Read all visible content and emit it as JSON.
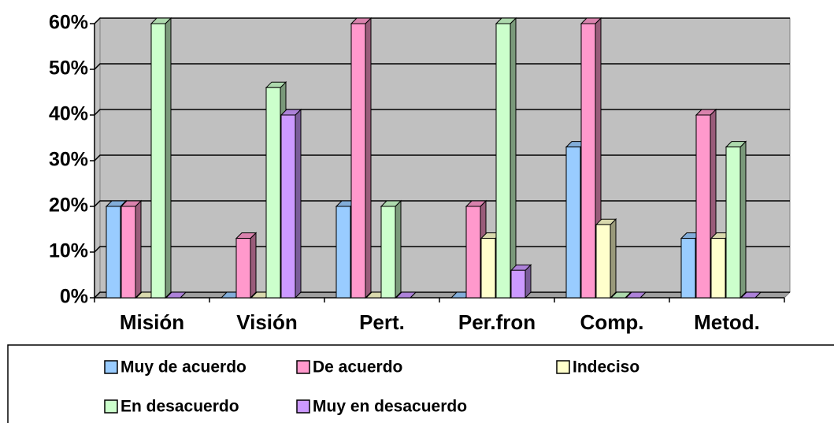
{
  "chart_data": {
    "type": "bar",
    "categories": [
      "Misión",
      "Visión",
      "Pert.",
      "Per.fron",
      "Comp.",
      "Metod."
    ],
    "series": [
      {
        "name": "Muy de acuerdo",
        "color": "#99ccff",
        "values": [
          20,
          0,
          20,
          0,
          33,
          13
        ]
      },
      {
        "name": "De acuerdo",
        "color": "#ff99cc",
        "values": [
          20,
          13,
          60,
          20,
          60,
          40
        ]
      },
      {
        "name": "Indeciso",
        "color": "#ffffcc",
        "values": [
          0,
          0,
          0,
          13,
          16,
          13
        ]
      },
      {
        "name": "En desacuerdo",
        "color": "#ccffcc",
        "values": [
          60,
          46,
          20,
          60,
          0,
          33
        ]
      },
      {
        "name": "Muy en desacuerdo",
        "color": "#cc99ff",
        "values": [
          0,
          40,
          0,
          6,
          0,
          0
        ]
      }
    ],
    "ylim": [
      0,
      60
    ],
    "yticks": [
      {
        "value": 0,
        "label": "0%"
      },
      {
        "value": 10,
        "label": "10%"
      },
      {
        "value": 20,
        "label": "20%"
      },
      {
        "value": 30,
        "label": "30%"
      },
      {
        "value": 40,
        "label": "40%"
      },
      {
        "value": 50,
        "label": "50%"
      },
      {
        "value": 60,
        "label": "60%"
      }
    ],
    "grid": true,
    "wall_color": "#c0c0c0"
  }
}
